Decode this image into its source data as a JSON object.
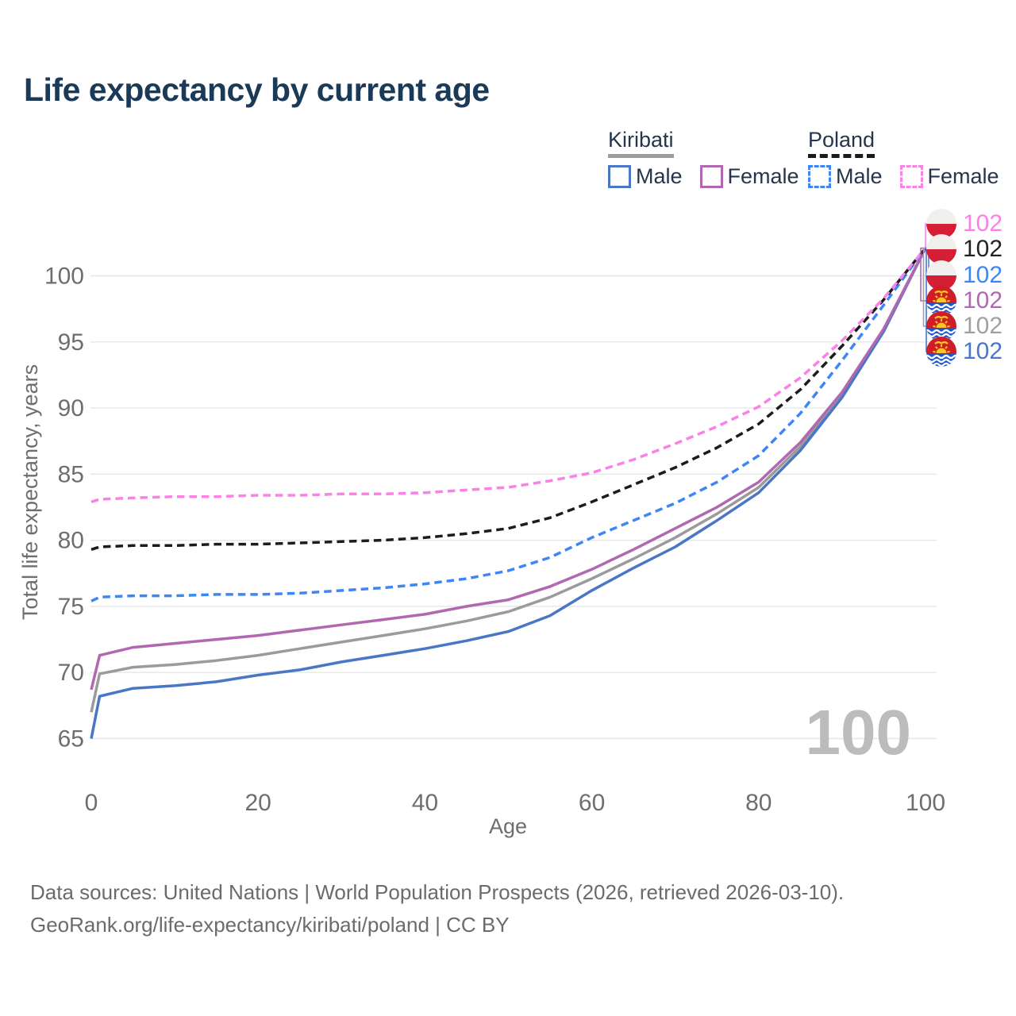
{
  "title": "Life expectancy by current age",
  "watermark": "100",
  "legend": {
    "groups": [
      {
        "label": "Kiribati",
        "line_style": "solid",
        "underline_color": "#9d9d9d",
        "items": [
          {
            "label": "Male",
            "color": "#4a76c6"
          },
          {
            "label": "Female",
            "color": "#b168b1"
          }
        ]
      },
      {
        "label": "Poland",
        "line_style": "dashed",
        "underline_color": "#1b1b1b",
        "items": [
          {
            "label": "Male",
            "color": "#3e86f5"
          },
          {
            "label": "Female",
            "color": "#fb81e7"
          }
        ]
      }
    ]
  },
  "chart_data": {
    "type": "line",
    "title": "Life expectancy by current age",
    "xlabel": "Age",
    "ylabel": "Total life expectancy, years",
    "xlim": [
      0,
      100
    ],
    "ylim": [
      63.5,
      103.5
    ],
    "x_ticks": [
      0,
      20,
      40,
      60,
      80,
      100
    ],
    "y_ticks": [
      65,
      70,
      75,
      80,
      85,
      90,
      95,
      100
    ],
    "grid": "horizontal-only",
    "legend_position": "top-right",
    "x": [
      0,
      1,
      5,
      10,
      15,
      20,
      25,
      30,
      35,
      40,
      45,
      50,
      55,
      60,
      65,
      70,
      75,
      80,
      85,
      90,
      95,
      100
    ],
    "series": [
      {
        "name": "Kiribati total",
        "country": "Kiribati",
        "sex": "total",
        "color": "#9b9b9b",
        "dash": false,
        "values": [
          67.0,
          69.9,
          70.4,
          70.6,
          70.9,
          71.3,
          71.8,
          72.3,
          72.8,
          73.3,
          73.9,
          74.6,
          75.7,
          77.1,
          78.6,
          80.2,
          82.0,
          84.0,
          87.1,
          91.0,
          95.9,
          102.1
        ]
      },
      {
        "name": "Kiribati Male",
        "country": "Kiribati",
        "sex": "male",
        "color": "#4a76c6",
        "dash": false,
        "values": [
          65.0,
          68.2,
          68.8,
          69.0,
          69.3,
          69.8,
          70.2,
          70.8,
          71.3,
          71.8,
          72.4,
          73.1,
          74.3,
          76.2,
          77.9,
          79.5,
          81.5,
          83.6,
          86.8,
          90.8,
          95.8,
          102.1
        ]
      },
      {
        "name": "Kiribati Female",
        "country": "Kiribati",
        "sex": "female",
        "color": "#b168b1",
        "dash": false,
        "values": [
          68.7,
          71.3,
          71.9,
          72.2,
          72.5,
          72.8,
          73.2,
          73.6,
          74.0,
          74.4,
          75.0,
          75.5,
          76.5,
          77.8,
          79.3,
          80.9,
          82.5,
          84.4,
          87.4,
          91.2,
          96.0,
          102.1
        ]
      },
      {
        "name": "Poland Male",
        "country": "Poland",
        "sex": "male",
        "color": "#3e86f5",
        "dash": true,
        "values": [
          75.4,
          75.7,
          75.8,
          75.8,
          75.9,
          75.9,
          76.0,
          76.2,
          76.4,
          76.7,
          77.1,
          77.7,
          78.7,
          80.2,
          81.5,
          82.8,
          84.4,
          86.4,
          89.6,
          93.6,
          97.8,
          102.1
        ]
      },
      {
        "name": "Poland total",
        "country": "Poland",
        "sex": "total",
        "color": "#1c1c1c",
        "dash": true,
        "values": [
          79.3,
          79.5,
          79.6,
          79.6,
          79.7,
          79.7,
          79.8,
          79.9,
          80.0,
          80.2,
          80.5,
          80.9,
          81.7,
          82.9,
          84.2,
          85.5,
          87.0,
          88.8,
          91.4,
          94.7,
          98.2,
          102.1
        ]
      },
      {
        "name": "Poland Female",
        "country": "Poland",
        "sex": "female",
        "color": "#fb81e7",
        "dash": true,
        "values": [
          82.9,
          83.1,
          83.2,
          83.3,
          83.3,
          83.4,
          83.4,
          83.5,
          83.5,
          83.6,
          83.8,
          84.0,
          84.5,
          85.1,
          86.1,
          87.3,
          88.6,
          90.1,
          92.3,
          95.1,
          98.3,
          102.1
        ]
      }
    ],
    "end_labels": [
      {
        "value": "102",
        "color": "#fb81e7",
        "flag": "poland",
        "series": "Poland Female"
      },
      {
        "value": "102",
        "color": "#222222",
        "flag": "poland",
        "series": "Poland total"
      },
      {
        "value": "102",
        "color": "#3e86f5",
        "flag": "poland",
        "series": "Poland Male"
      },
      {
        "value": "102",
        "color": "#b168b1",
        "flag": "kiribati",
        "series": "Kiribati Female"
      },
      {
        "value": "102",
        "color": "#a0a0a0",
        "flag": "kiribati",
        "series": "Kiribati total"
      },
      {
        "value": "102",
        "color": "#4a76c6",
        "flag": "kiribati",
        "series": "Kiribati Male"
      }
    ]
  },
  "footer": {
    "line1": "Data sources: United Nations | World Population Prospects (2026, retrieved 2026-03-10).",
    "line2": "GeoRank.org/life-expectancy/kiribati/poland | CC BY"
  }
}
